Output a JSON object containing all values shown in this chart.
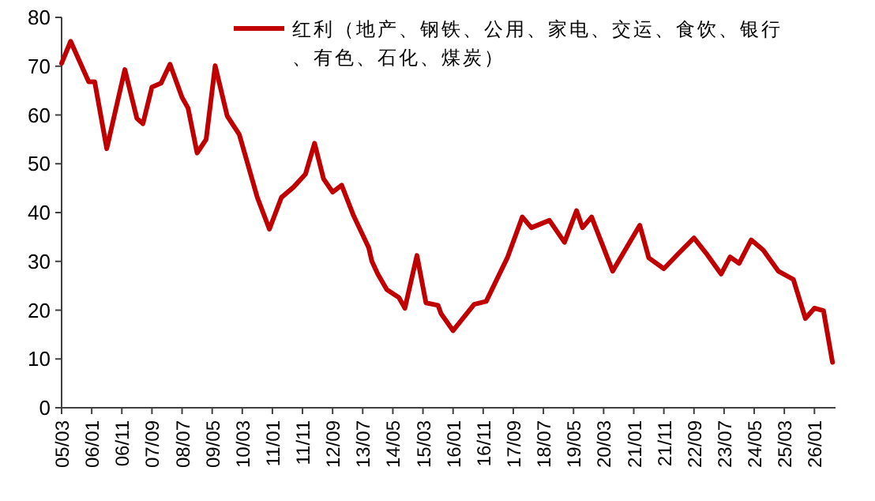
{
  "chart_data": {
    "type": "line",
    "x": [
      "2005-03",
      "2005-06",
      "2005-12",
      "2006-02",
      "2006-06",
      "2006-12",
      "2007-04",
      "2007-06",
      "2007-09",
      "2007-12",
      "2008-03",
      "2008-07",
      "2008-09",
      "2008-12",
      "2009-03",
      "2009-06",
      "2009-10",
      "2010-02",
      "2010-08",
      "2010-12",
      "2011-04",
      "2011-08",
      "2011-12",
      "2012-03",
      "2012-06",
      "2012-09",
      "2012-12",
      "2013-04",
      "2013-09",
      "2013-10",
      "2013-12",
      "2014-03",
      "2014-07",
      "2014-09",
      "2015-01",
      "2015-04",
      "2015-08",
      "2015-09",
      "2016-01",
      "2016-08",
      "2016-12",
      "2017-04",
      "2017-07",
      "2017-12",
      "2018-03",
      "2018-09",
      "2019-02",
      "2019-06",
      "2019-08",
      "2019-11",
      "2020-06",
      "2021-03",
      "2021-06",
      "2021-11",
      "2022-04",
      "2022-09",
      "2023-01",
      "2023-06",
      "2023-09",
      "2023-12",
      "2024-04",
      "2024-08",
      "2025-01",
      "2025-06",
      "2025-10",
      "2026-01",
      "2026-04",
      "2026-07"
    ],
    "series": [
      {
        "name": "红利（地产、钢铁、公用、家电、交运、食饮、银行、有色、石化、煤炭）",
        "color": "#c00000",
        "values": [
          70.6,
          75.1,
          66.8,
          66.8,
          53.1,
          69.3,
          59.3,
          58.2,
          65.7,
          66.5,
          70.4,
          63.6,
          61.4,
          52.2,
          55.0,
          70.1,
          59.8,
          56.0,
          43.1,
          36.6,
          43.1,
          45.2,
          47.9,
          54.2,
          46.9,
          44.2,
          45.6,
          39.3,
          32.8,
          30.1,
          27.4,
          24.2,
          22.6,
          20.4,
          31.2,
          21.5,
          21.0,
          19.3,
          15.8,
          21.2,
          21.8,
          26.9,
          30.7,
          39.1,
          36.9,
          38.4,
          33.9,
          40.4,
          36.9,
          39.1,
          28.0,
          37.4,
          30.7,
          28.5,
          31.7,
          34.8,
          31.7,
          27.4,
          30.9,
          29.6,
          34.4,
          32.3,
          28.0,
          26.3,
          18.3,
          20.4,
          19.9,
          9.3
        ]
      }
    ],
    "xlim": [
      "2005-03",
      "2026-08"
    ],
    "xticks": [
      {
        "value": "2005-03",
        "label": "05/03"
      },
      {
        "value": "2006-01",
        "label": "06/01"
      },
      {
        "value": "2006-11",
        "label": "06/11"
      },
      {
        "value": "2007-09",
        "label": "07/09"
      },
      {
        "value": "2008-07",
        "label": "08/07"
      },
      {
        "value": "2009-05",
        "label": "09/05"
      },
      {
        "value": "2010-03",
        "label": "10/03"
      },
      {
        "value": "2011-01",
        "label": "11/01"
      },
      {
        "value": "2011-11",
        "label": "11/11"
      },
      {
        "value": "2012-09",
        "label": "12/09"
      },
      {
        "value": "2013-07",
        "label": "13/07"
      },
      {
        "value": "2014-05",
        "label": "14/05"
      },
      {
        "value": "2015-03",
        "label": "15/03"
      },
      {
        "value": "2016-01",
        "label": "16/01"
      },
      {
        "value": "2016-11",
        "label": "16/11"
      },
      {
        "value": "2017-09",
        "label": "17/09"
      },
      {
        "value": "2018-07",
        "label": "18/07"
      },
      {
        "value": "2019-05",
        "label": "19/05"
      },
      {
        "value": "2020-03",
        "label": "20/03"
      },
      {
        "value": "2021-01",
        "label": "21/01"
      },
      {
        "value": "2021-11",
        "label": "21/11"
      },
      {
        "value": "2022-09",
        "label": "22/09"
      },
      {
        "value": "2023-07",
        "label": "23/07"
      },
      {
        "value": "2024-05",
        "label": "24/05"
      },
      {
        "value": "2025-03",
        "label": "25/03"
      },
      {
        "value": "2026-01",
        "label": "26/01"
      }
    ],
    "ylim": [
      0,
      80
    ],
    "yticks": [
      0,
      10,
      20,
      30,
      40,
      50,
      60,
      70,
      80
    ],
    "legend": "top right",
    "grid": false,
    "marker": "none",
    "line_style": "solid"
  }
}
